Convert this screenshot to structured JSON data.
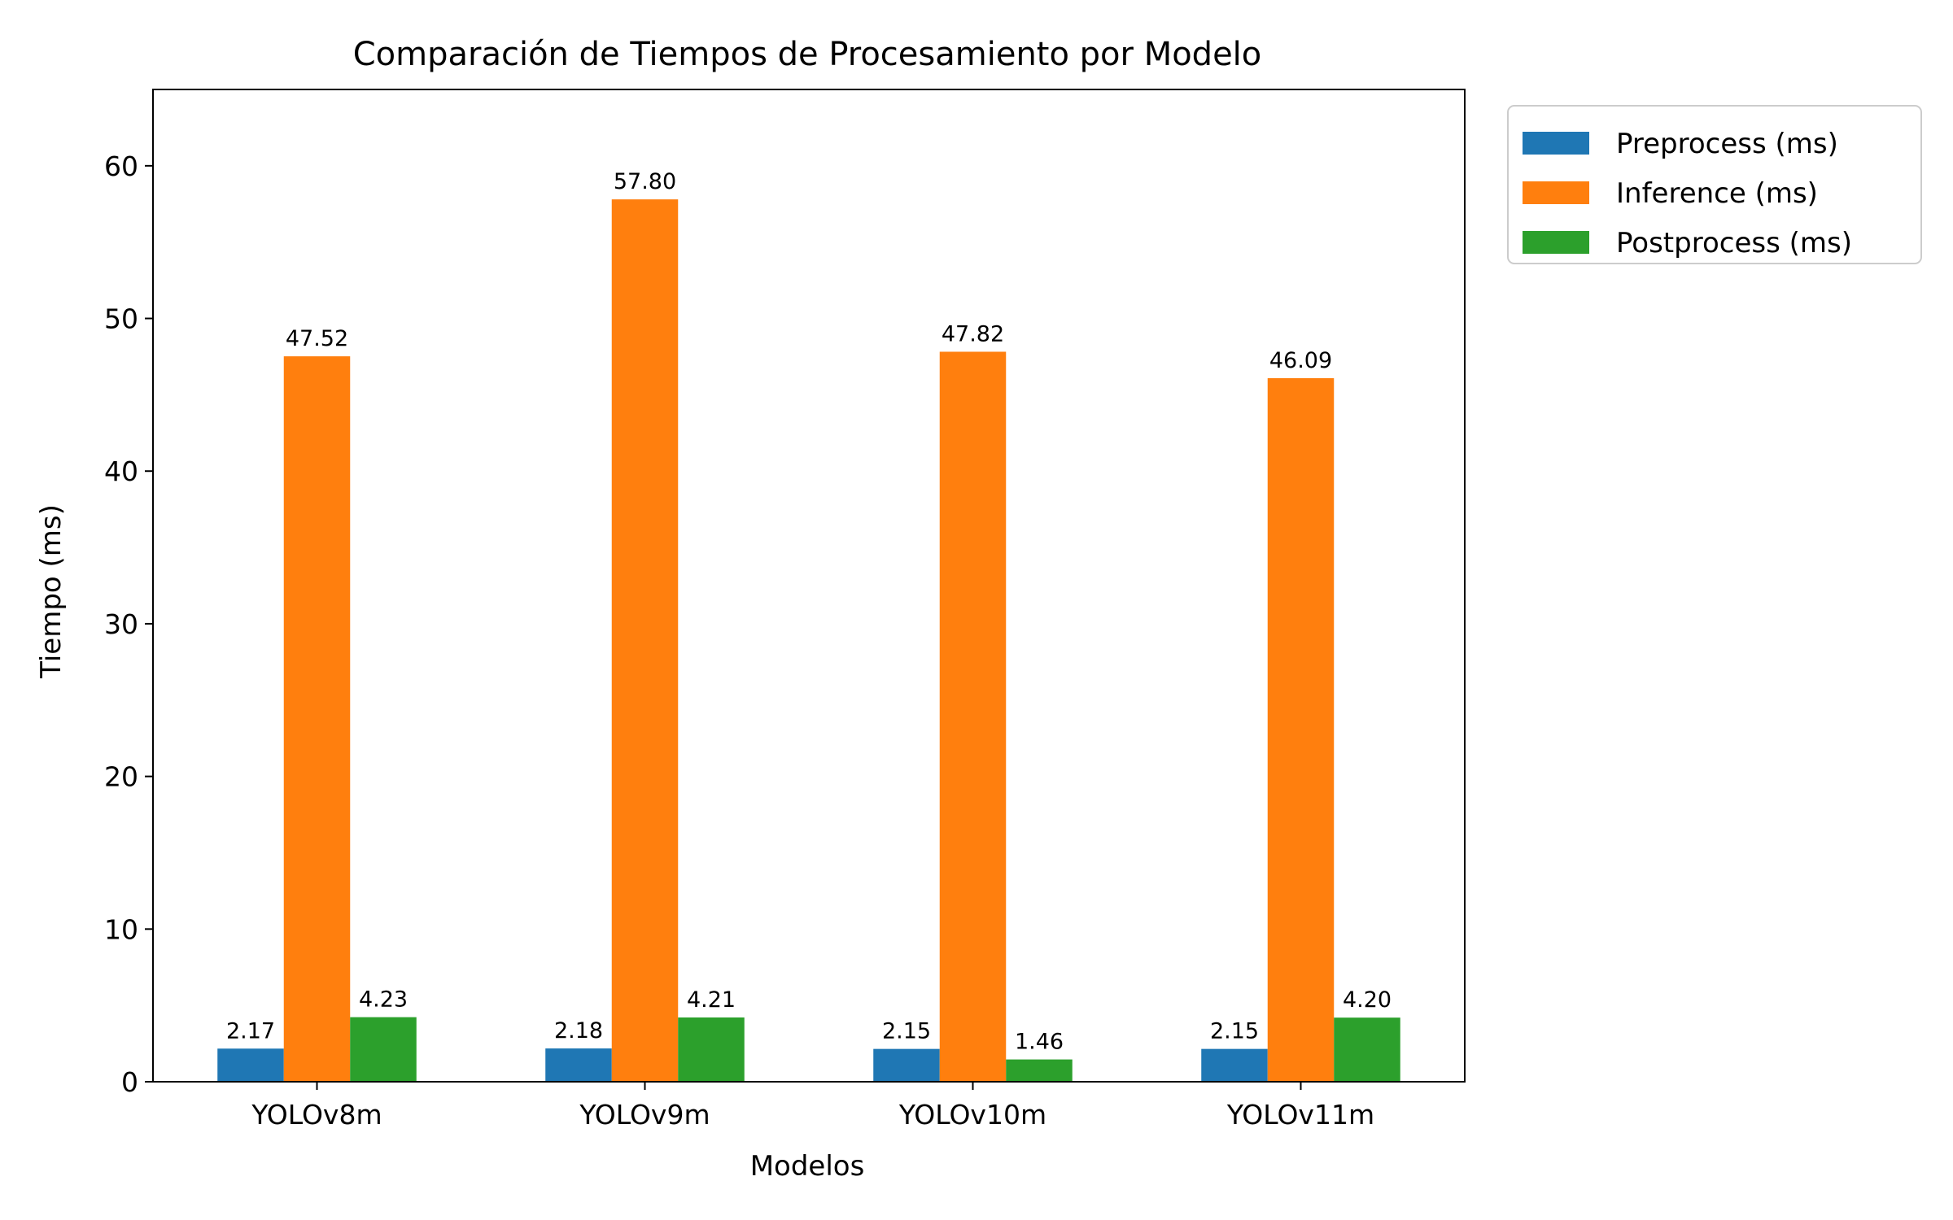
{
  "chart_data": {
    "type": "bar",
    "title": "Comparación de Tiempos de Procesamiento por Modelo",
    "xlabel": "Modelos",
    "ylabel": "Tiempo (ms)",
    "categories": [
      "YOLOv8m",
      "YOLOv9m",
      "YOLOv10m",
      "YOLOv11m"
    ],
    "series": [
      {
        "name": "Preprocess (ms)",
        "color": "#1f77b4",
        "values": [
          2.17,
          2.18,
          2.15,
          2.15
        ],
        "labels": [
          "2.17",
          "2.18",
          "2.15",
          "2.15"
        ]
      },
      {
        "name": "Inference (ms)",
        "color": "#ff7f0e",
        "values": [
          47.52,
          57.8,
          47.82,
          46.09
        ],
        "labels": [
          "47.52",
          "57.80",
          "47.82",
          "46.09"
        ]
      },
      {
        "name": "Postprocess (ms)",
        "color": "#2ca02c",
        "values": [
          4.23,
          4.21,
          1.46,
          4.2
        ],
        "labels": [
          "4.23",
          "4.21",
          "1.46",
          "4.20"
        ]
      }
    ],
    "ylim": [
      0,
      65
    ],
    "yticks": [
      0,
      10,
      20,
      30,
      40,
      50,
      60
    ],
    "grid": false,
    "legend_position": "outside-top-right"
  }
}
